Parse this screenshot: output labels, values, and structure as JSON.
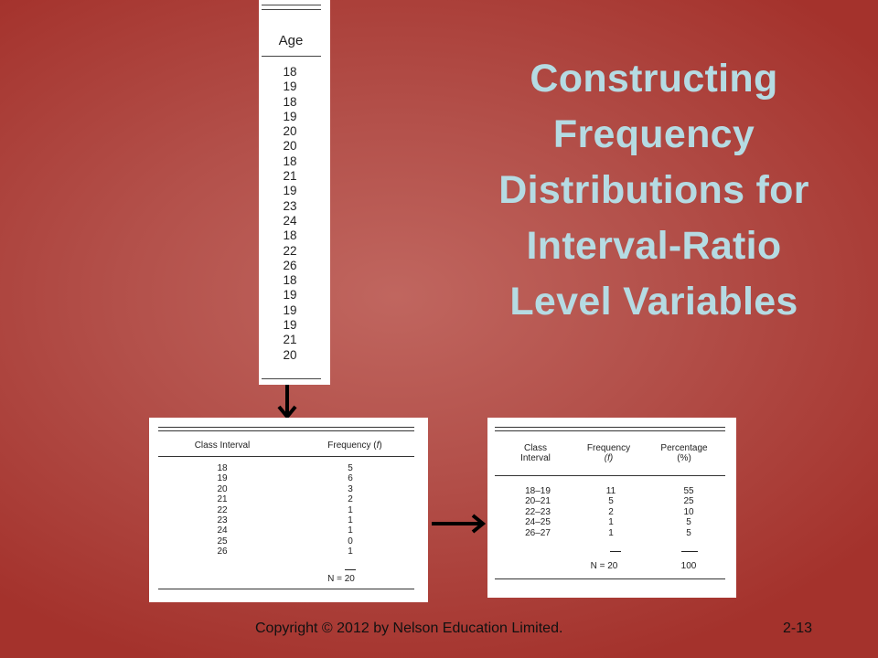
{
  "title_lines": [
    "Constructing",
    "Frequency",
    "Distributions for",
    "Interval-Ratio",
    "Level Variables"
  ],
  "raw_data": {
    "header": "Age",
    "values": [
      "18",
      "19",
      "18",
      "19",
      "20",
      "20",
      "18",
      "21",
      "19",
      "23",
      "24",
      "18",
      "22",
      "26",
      "18",
      "19",
      "19",
      "19",
      "21",
      "20"
    ]
  },
  "table1": {
    "headers": [
      "Class Interval",
      "Frequency (f)"
    ],
    "class_intervals": [
      "18",
      "19",
      "20",
      "21",
      "22",
      "23",
      "24",
      "25",
      "26"
    ],
    "frequencies": [
      "5",
      "6",
      "3",
      "2",
      "1",
      "1",
      "1",
      "0",
      "1"
    ],
    "total_label": "N = 20"
  },
  "table2": {
    "headers": [
      "Class Interval",
      "Frequency (f)",
      "Percentage (%)"
    ],
    "header_lines": {
      "class": [
        "Class",
        "Interval"
      ],
      "freq": [
        "Frequency",
        "(f)"
      ],
      "pct": [
        "Percentage",
        "(%)"
      ]
    },
    "class_intervals": [
      "18–19",
      "20–21",
      "22–23",
      "24–25",
      "26–27"
    ],
    "frequencies": [
      "11",
      "5",
      "2",
      "1",
      "1"
    ],
    "percentages": [
      "55",
      "25",
      "10",
      "5",
      "5"
    ],
    "total_frequency": "N = 20",
    "total_percentage": "100"
  },
  "footer": {
    "copyright": "Copyright © 2012 by Nelson Education Limited.",
    "page": "2-13"
  },
  "colors": {
    "title": "#b5dbe3",
    "background": "#b3504a"
  }
}
